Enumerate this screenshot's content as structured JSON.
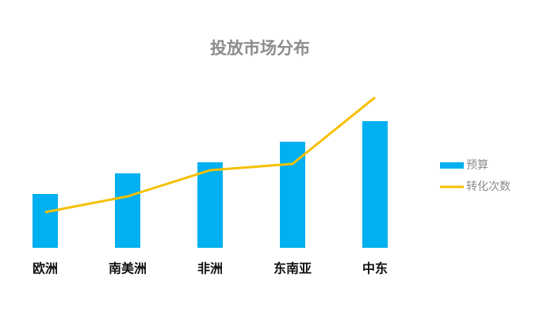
{
  "chart_data": {
    "type": "bar-line",
    "title": "投放市场分布",
    "categories": [
      "欧洲",
      "南美洲",
      "非洲",
      "东南亚",
      "中东"
    ],
    "series": [
      {
        "name": "预算",
        "type": "bar",
        "color": "#00b0f0",
        "values": [
          68,
          94,
          108,
          134,
          160
        ]
      },
      {
        "name": "转化次数",
        "type": "line",
        "color": "#f5c000",
        "values": [
          45,
          65,
          98,
          106,
          190
        ]
      }
    ],
    "ylim": [
      0,
      200
    ],
    "legend": "right"
  }
}
